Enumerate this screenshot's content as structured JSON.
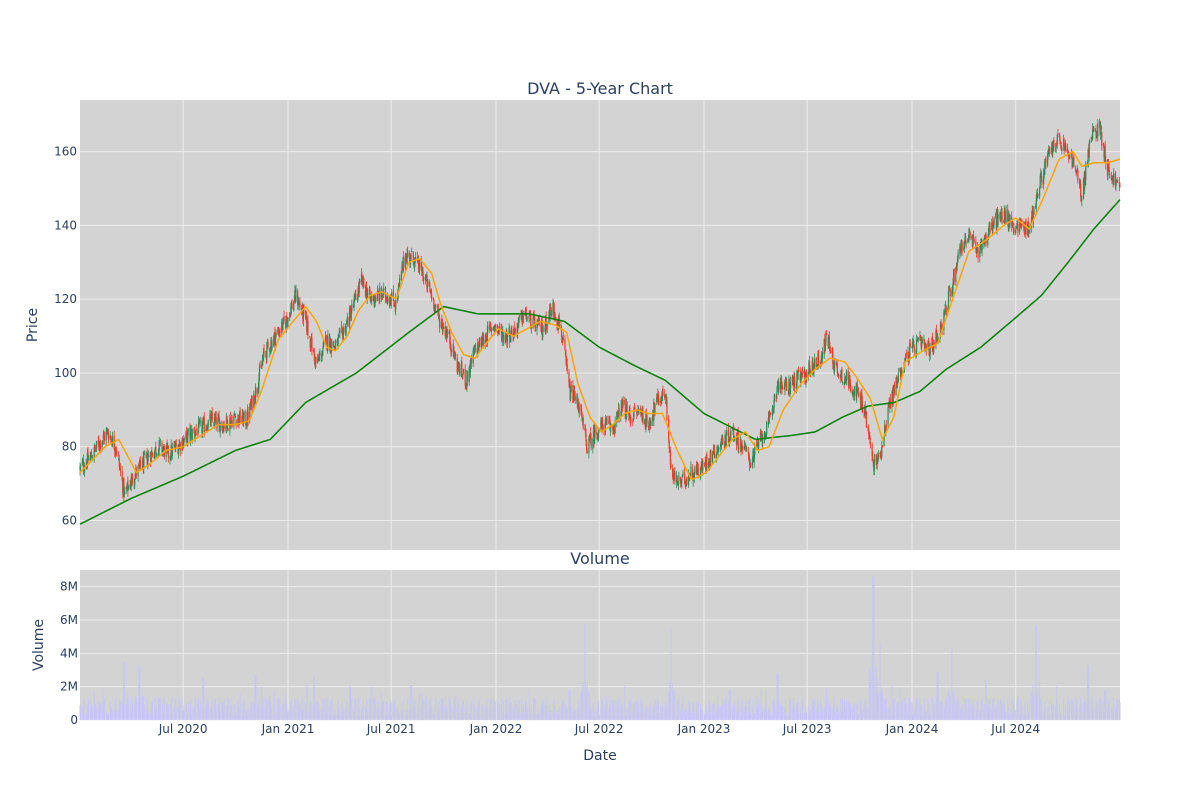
{
  "chart_data": {
    "type": "candlestick",
    "title": "DVA - 5-Year Chart",
    "subplot_title": "Volume",
    "ylabel": "Price",
    "volume_ylabel": "Volume",
    "xlabel": "Date",
    "x_range": [
      "2020-01-02",
      "2024-12-31"
    ],
    "ylim": [
      52,
      174
    ],
    "volume_ylim": [
      0,
      9000000
    ],
    "price_ticks": [
      60,
      80,
      100,
      120,
      140,
      160
    ],
    "price_tick_labels": [
      "60",
      "80",
      "100",
      "120",
      "140",
      "160"
    ],
    "volume_ticks": [
      0,
      2000000,
      4000000,
      6000000,
      8000000
    ],
    "volume_tick_labels": [
      "0",
      "2M",
      "4M",
      "6M",
      "8M"
    ],
    "x_ticks": [
      "2020-07-01",
      "2021-01-01",
      "2021-07-01",
      "2022-01-01",
      "2022-07-01",
      "2023-01-01",
      "2023-07-01",
      "2024-01-01",
      "2024-07-01"
    ],
    "x_tick_labels": [
      "Jul 2020",
      "Jan 2021",
      "Jul 2021",
      "Jan 2022",
      "Jul 2022",
      "Jan 2023",
      "Jul 2023",
      "Jan 2024",
      "Jul 2024"
    ],
    "grid": true,
    "colors": {
      "up": "#2e8b57",
      "down": "#ef3b2c",
      "ma_short": "#ffa500",
      "ma_long": "#008000",
      "volume": "#c7c7f0",
      "plot_bg": "#d3d3d3",
      "grid": "#ececec"
    },
    "price_anchors": [
      [
        "2020-01-02",
        74
      ],
      [
        "2020-01-20",
        77
      ],
      [
        "2020-02-05",
        81
      ],
      [
        "2020-02-20",
        84
      ],
      [
        "2020-03-05",
        80
      ],
      [
        "2020-03-20",
        67
      ],
      [
        "2020-04-05",
        72
      ],
      [
        "2020-04-20",
        75
      ],
      [
        "2020-05-05",
        78
      ],
      [
        "2020-05-20",
        80
      ],
      [
        "2020-06-05",
        78
      ],
      [
        "2020-06-20",
        80
      ],
      [
        "2020-07-10",
        83
      ],
      [
        "2020-08-01",
        85
      ],
      [
        "2020-08-20",
        87
      ],
      [
        "2020-09-10",
        86
      ],
      [
        "2020-10-01",
        88
      ],
      [
        "2020-10-20",
        87
      ],
      [
        "2020-11-05",
        95
      ],
      [
        "2020-11-20",
        105
      ],
      [
        "2020-12-10",
        110
      ],
      [
        "2020-12-28",
        114
      ],
      [
        "2021-01-15",
        121
      ],
      [
        "2021-02-01",
        114
      ],
      [
        "2021-02-20",
        102
      ],
      [
        "2021-03-10",
        109
      ],
      [
        "2021-03-25",
        107
      ],
      [
        "2021-04-10",
        112
      ],
      [
        "2021-04-25",
        118
      ],
      [
        "2021-05-10",
        125
      ],
      [
        "2021-05-25",
        120
      ],
      [
        "2021-06-10",
        121
      ],
      [
        "2021-06-25",
        121
      ],
      [
        "2021-07-10",
        119
      ],
      [
        "2021-07-25",
        132
      ],
      [
        "2021-08-10",
        131
      ],
      [
        "2021-08-25",
        127
      ],
      [
        "2021-09-10",
        121
      ],
      [
        "2021-09-25",
        114
      ],
      [
        "2021-10-10",
        110
      ],
      [
        "2021-10-25",
        102
      ],
      [
        "2021-11-10",
        98
      ],
      [
        "2021-11-25",
        106
      ],
      [
        "2021-12-10",
        109
      ],
      [
        "2021-12-28",
        113
      ],
      [
        "2022-01-15",
        110
      ],
      [
        "2022-02-01",
        111
      ],
      [
        "2022-02-20",
        116
      ],
      [
        "2022-03-10",
        113
      ],
      [
        "2022-03-25",
        112
      ],
      [
        "2022-04-10",
        118
      ],
      [
        "2022-04-25",
        112
      ],
      [
        "2022-05-10",
        95
      ],
      [
        "2022-05-25",
        92
      ],
      [
        "2022-06-10",
        80
      ],
      [
        "2022-06-25",
        84
      ],
      [
        "2022-07-10",
        86
      ],
      [
        "2022-07-25",
        85
      ],
      [
        "2022-08-10",
        91
      ],
      [
        "2022-08-25",
        88
      ],
      [
        "2022-09-10",
        90
      ],
      [
        "2022-09-25",
        86
      ],
      [
        "2022-10-10",
        92
      ],
      [
        "2022-10-25",
        95
      ],
      [
        "2022-11-05",
        72
      ],
      [
        "2022-11-20",
        70
      ],
      [
        "2022-12-10",
        73
      ],
      [
        "2022-12-28",
        74
      ],
      [
        "2023-01-15",
        78
      ],
      [
        "2023-02-01",
        81
      ],
      [
        "2023-02-20",
        84
      ],
      [
        "2023-03-10",
        80
      ],
      [
        "2023-03-25",
        76
      ],
      [
        "2023-04-10",
        82
      ],
      [
        "2023-04-25",
        86
      ],
      [
        "2023-05-10",
        97
      ],
      [
        "2023-05-25",
        96
      ],
      [
        "2023-06-10",
        98
      ],
      [
        "2023-06-25",
        99
      ],
      [
        "2023-07-10",
        102
      ],
      [
        "2023-07-25",
        104
      ],
      [
        "2023-08-05",
        110
      ],
      [
        "2023-08-20",
        101
      ],
      [
        "2023-09-10",
        98
      ],
      [
        "2023-09-25",
        95
      ],
      [
        "2023-10-10",
        90
      ],
      [
        "2023-10-25",
        75
      ],
      [
        "2023-11-05",
        77
      ],
      [
        "2023-11-20",
        90
      ],
      [
        "2023-12-10",
        100
      ],
      [
        "2023-12-28",
        106
      ],
      [
        "2024-01-15",
        108
      ],
      [
        "2024-02-01",
        106
      ],
      [
        "2024-02-20",
        112
      ],
      [
        "2024-03-10",
        123
      ],
      [
        "2024-03-25",
        134
      ],
      [
        "2024-04-10",
        137
      ],
      [
        "2024-04-25",
        133
      ],
      [
        "2024-05-10",
        137
      ],
      [
        "2024-05-25",
        141
      ],
      [
        "2024-06-10",
        143
      ],
      [
        "2024-06-25",
        140
      ],
      [
        "2024-07-10",
        140
      ],
      [
        "2024-07-25",
        139
      ],
      [
        "2024-08-10",
        150
      ],
      [
        "2024-08-25",
        158
      ],
      [
        "2024-09-10",
        163
      ],
      [
        "2024-09-25",
        161
      ],
      [
        "2024-10-10",
        157
      ],
      [
        "2024-10-25",
        148
      ],
      [
        "2024-11-10",
        164
      ],
      [
        "2024-11-25",
        167
      ],
      [
        "2024-12-10",
        155
      ],
      [
        "2024-12-31",
        150
      ]
    ],
    "ma_short_anchors": [
      [
        "2020-01-02",
        73
      ],
      [
        "2020-02-15",
        80
      ],
      [
        "2020-03-10",
        82
      ],
      [
        "2020-04-10",
        73
      ],
      [
        "2020-05-01",
        75
      ],
      [
        "2020-06-01",
        79
      ],
      [
        "2020-07-01",
        80
      ],
      [
        "2020-08-01",
        83
      ],
      [
        "2020-09-01",
        86
      ],
      [
        "2020-10-01",
        86
      ],
      [
        "2020-10-25",
        87
      ],
      [
        "2020-11-15",
        95
      ],
      [
        "2020-12-15",
        109
      ],
      [
        "2021-01-10",
        114
      ],
      [
        "2021-02-01",
        118
      ],
      [
        "2021-02-20",
        114
      ],
      [
        "2021-03-10",
        107
      ],
      [
        "2021-03-25",
        106
      ],
      [
        "2021-04-15",
        110
      ],
      [
        "2021-05-05",
        117
      ],
      [
        "2021-05-25",
        121
      ],
      [
        "2021-06-15",
        122
      ],
      [
        "2021-07-10",
        120
      ],
      [
        "2021-08-01",
        130
      ],
      [
        "2021-08-20",
        131
      ],
      [
        "2021-09-10",
        127
      ],
      [
        "2021-09-25",
        119
      ],
      [
        "2021-10-15",
        111
      ],
      [
        "2021-11-05",
        105
      ],
      [
        "2021-11-25",
        104
      ],
      [
        "2021-12-15",
        108
      ],
      [
        "2022-01-05",
        112
      ],
      [
        "2022-02-01",
        110
      ],
      [
        "2022-02-25",
        112
      ],
      [
        "2022-03-20",
        114
      ],
      [
        "2022-04-15",
        113
      ],
      [
        "2022-05-05",
        111
      ],
      [
        "2022-05-25",
        97
      ],
      [
        "2022-06-15",
        88
      ],
      [
        "2022-07-05",
        84
      ],
      [
        "2022-07-25",
        86
      ],
      [
        "2022-08-15",
        89
      ],
      [
        "2022-09-05",
        90
      ],
      [
        "2022-09-25",
        89
      ],
      [
        "2022-10-20",
        89
      ],
      [
        "2022-11-15",
        79
      ],
      [
        "2022-12-10",
        71
      ],
      [
        "2023-01-05",
        73
      ],
      [
        "2023-01-25",
        77
      ],
      [
        "2023-02-20",
        82
      ],
      [
        "2023-03-15",
        84
      ],
      [
        "2023-04-05",
        79
      ],
      [
        "2023-04-25",
        80
      ],
      [
        "2023-05-20",
        90
      ],
      [
        "2023-06-20",
        97
      ],
      [
        "2023-07-15",
        101
      ],
      [
        "2023-08-10",
        104
      ],
      [
        "2023-09-05",
        103
      ],
      [
        "2023-09-25",
        99
      ],
      [
        "2023-10-20",
        93
      ],
      [
        "2023-11-10",
        82
      ],
      [
        "2023-11-30",
        88
      ],
      [
        "2023-12-20",
        103
      ],
      [
        "2024-01-20",
        106
      ],
      [
        "2024-02-15",
        108
      ],
      [
        "2024-03-10",
        119
      ],
      [
        "2024-04-10",
        133
      ],
      [
        "2024-05-10",
        136
      ],
      [
        "2024-06-10",
        140
      ],
      [
        "2024-07-01",
        142
      ],
      [
        "2024-07-25",
        139
      ],
      [
        "2024-08-20",
        148
      ],
      [
        "2024-09-15",
        158
      ],
      [
        "2024-10-10",
        160
      ],
      [
        "2024-10-25",
        156
      ],
      [
        "2024-11-15",
        157
      ],
      [
        "2024-12-10",
        157
      ],
      [
        "2024-12-31",
        158
      ]
    ],
    "ma_long_anchors": [
      [
        "2020-01-02",
        59
      ],
      [
        "2020-04-01",
        66
      ],
      [
        "2020-07-01",
        72
      ],
      [
        "2020-10-01",
        79
      ],
      [
        "2020-12-01",
        82
      ],
      [
        "2021-02-01",
        92
      ],
      [
        "2021-05-01",
        100
      ],
      [
        "2021-08-01",
        111
      ],
      [
        "2021-10-01",
        118
      ],
      [
        "2021-12-01",
        116
      ],
      [
        "2022-03-01",
        116
      ],
      [
        "2022-05-01",
        114
      ],
      [
        "2022-07-01",
        107
      ],
      [
        "2022-09-01",
        102
      ],
      [
        "2022-10-25",
        98
      ],
      [
        "2023-01-01",
        89
      ],
      [
        "2023-04-01",
        82
      ],
      [
        "2023-06-01",
        83
      ],
      [
        "2023-07-15",
        84
      ],
      [
        "2023-09-01",
        88
      ],
      [
        "2023-10-15",
        91
      ],
      [
        "2023-12-01",
        92
      ],
      [
        "2024-01-15",
        95
      ],
      [
        "2024-03-01",
        101
      ],
      [
        "2024-05-01",
        107
      ],
      [
        "2024-07-01",
        115
      ],
      [
        "2024-08-15",
        121
      ],
      [
        "2024-10-01",
        130
      ],
      [
        "2024-11-15",
        139
      ],
      [
        "2024-12-31",
        147
      ]
    ],
    "volume_spikes": [
      [
        "2020-03-20",
        3500000
      ],
      [
        "2020-04-15",
        3300000
      ],
      [
        "2020-08-05",
        2500000
      ],
      [
        "2020-11-05",
        2700000
      ],
      [
        "2021-02-15",
        2600000
      ],
      [
        "2021-04-20",
        2000000
      ],
      [
        "2021-08-05",
        2100000
      ],
      [
        "2022-05-10",
        1800000
      ],
      [
        "2022-06-05",
        5800000
      ],
      [
        "2022-11-05",
        5500000
      ],
      [
        "2023-02-15",
        1800000
      ],
      [
        "2023-05-10",
        2800000
      ],
      [
        "2023-08-05",
        1900000
      ],
      [
        "2023-10-25",
        8600000
      ],
      [
        "2023-11-05",
        4600000
      ],
      [
        "2024-02-15",
        2900000
      ],
      [
        "2024-03-10",
        4300000
      ],
      [
        "2024-05-10",
        2400000
      ],
      [
        "2024-08-05",
        5700000
      ],
      [
        "2024-11-05",
        3300000
      ],
      [
        "2024-12-05",
        1800000
      ]
    ]
  }
}
